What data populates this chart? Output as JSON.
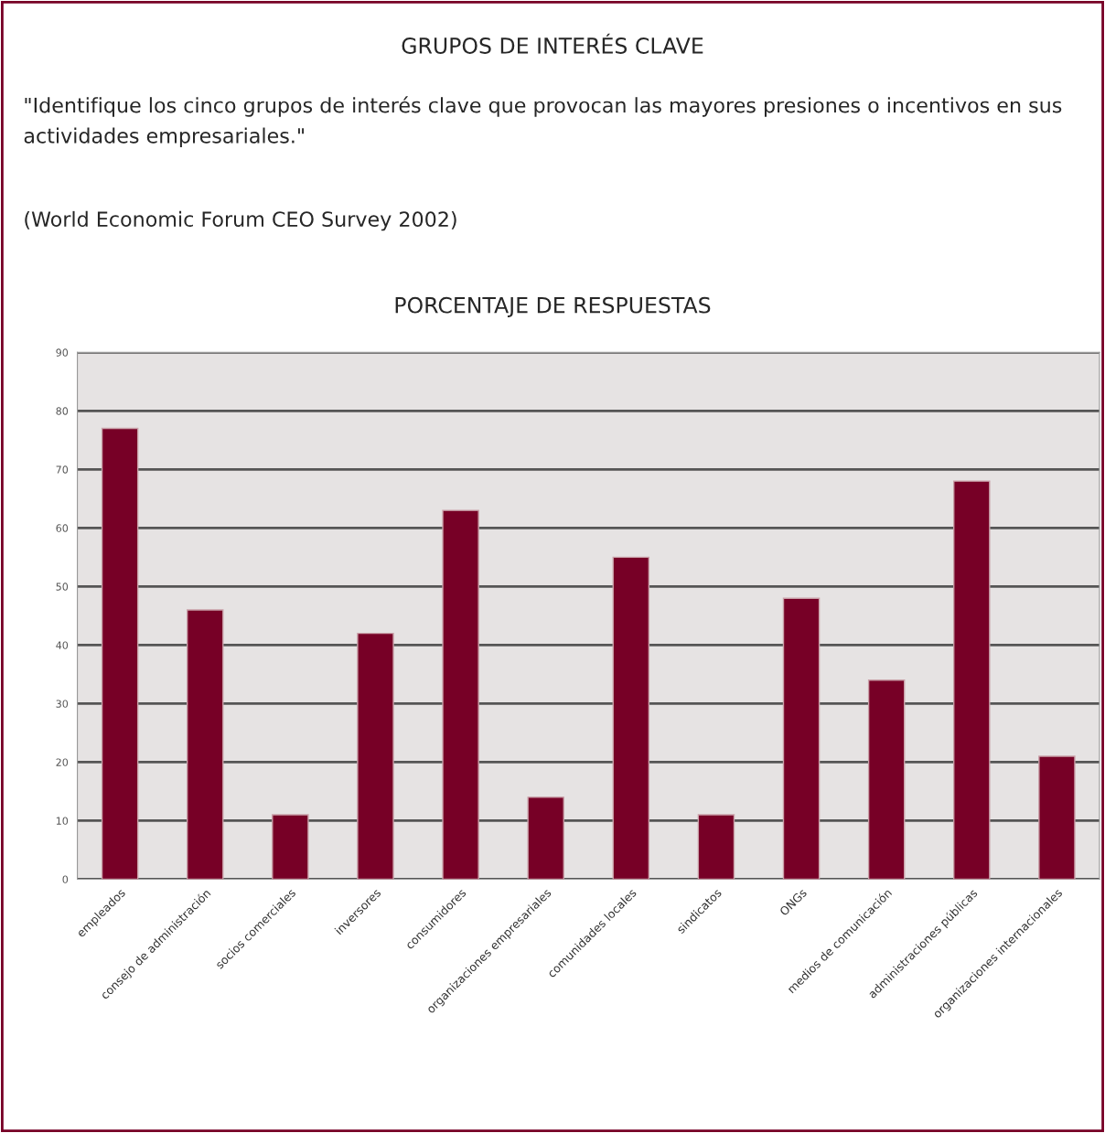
{
  "chart_data": {
    "type": "bar",
    "title": "GRUPOS DE INTERÉS CLAVE",
    "subtitle": "\"Identifique los cinco grupos de interés clave que provocan las mayores presiones o incentivos en sus actividades empresariales.\"",
    "annotations": [
      "(World Economic Forum CEO Survey 2002)",
      "PORCENTAJE DE RESPUESTAS"
    ],
    "categories": [
      "empleados",
      "consejo de administración",
      "socios comerciales",
      "inversores",
      "consumidores",
      "organizaciones empresariales",
      "comunidades locales",
      "sindicatos",
      "ONGs",
      "medios de comunicación",
      "administraciones públicas",
      "organizaciones internacionales"
    ],
    "values": [
      77,
      46,
      11,
      42,
      63,
      14,
      55,
      11,
      48,
      34,
      68,
      21
    ],
    "color": "#770026",
    "ylim": [
      0,
      90
    ],
    "yticks": [
      0,
      10,
      20,
      30,
      40,
      50,
      60,
      70,
      80,
      90
    ],
    "grid": "y",
    "legend": false
  }
}
